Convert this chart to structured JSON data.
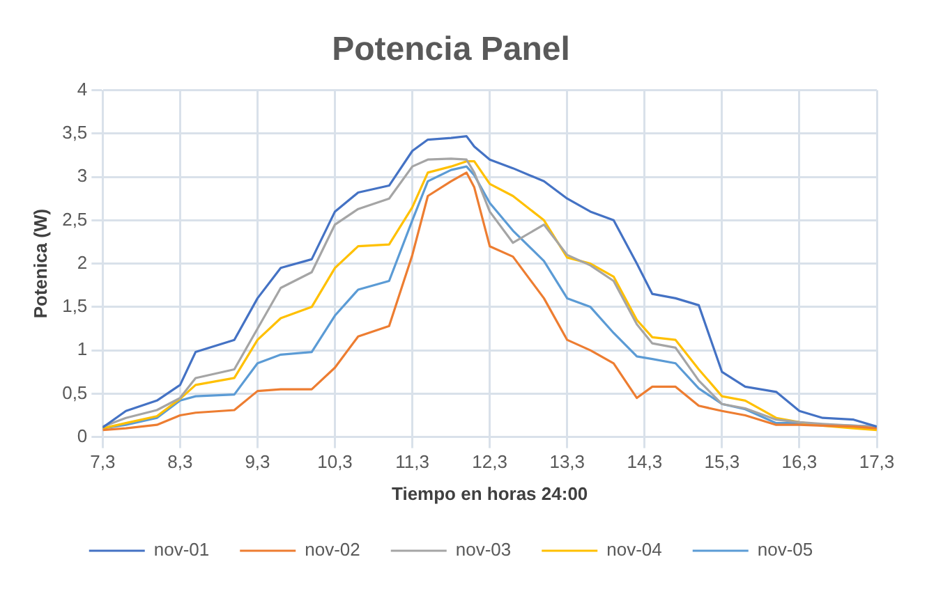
{
  "chart_data": {
    "type": "line",
    "title": "Potencia Panel",
    "xlabel": "Tiempo en horas 24:00",
    "ylabel": "Potenica (W)",
    "x": [
      7.3,
      7.6,
      8.0,
      8.3,
      8.5,
      9.0,
      9.3,
      9.6,
      10.0,
      10.3,
      10.6,
      11.0,
      11.3,
      11.5,
      11.8,
      12.0,
      12.1,
      12.3,
      12.6,
      13.0,
      13.3,
      13.6,
      13.9,
      14.2,
      14.4,
      14.7,
      15.0,
      15.3,
      15.6,
      16.0,
      16.3,
      16.6,
      17.0,
      17.3
    ],
    "series": [
      {
        "name": "nov-01",
        "color": "#4472c4",
        "values": [
          0.11,
          0.3,
          0.42,
          0.6,
          0.98,
          1.12,
          1.6,
          1.95,
          2.05,
          2.6,
          2.82,
          2.9,
          3.3,
          3.43,
          3.45,
          3.47,
          3.35,
          3.2,
          3.1,
          2.95,
          2.75,
          2.6,
          2.5,
          2.0,
          1.65,
          1.6,
          1.52,
          0.75,
          0.58,
          0.52,
          0.3,
          0.22,
          0.2,
          0.12
        ]
      },
      {
        "name": "nov-02",
        "color": "#ed7d31",
        "values": [
          0.08,
          0.1,
          0.14,
          0.25,
          0.28,
          0.31,
          0.53,
          0.55,
          0.55,
          0.8,
          1.16,
          1.28,
          2.1,
          2.78,
          2.95,
          3.05,
          2.88,
          2.2,
          2.08,
          1.6,
          1.12,
          1.0,
          0.85,
          0.45,
          0.58,
          0.58,
          0.36,
          0.3,
          0.25,
          0.14,
          0.14,
          0.13,
          0.12,
          0.1
        ]
      },
      {
        "name": "nov-03",
        "color": "#a5a5a5",
        "values": [
          0.12,
          0.22,
          0.31,
          0.45,
          0.68,
          0.78,
          1.25,
          1.72,
          1.9,
          2.45,
          2.63,
          2.75,
          3.12,
          3.2,
          3.21,
          3.2,
          3.05,
          2.6,
          2.24,
          2.45,
          2.1,
          1.98,
          1.8,
          1.3,
          1.08,
          1.03,
          0.65,
          0.38,
          0.33,
          0.2,
          0.17,
          0.15,
          0.13,
          0.12
        ]
      },
      {
        "name": "nov-04",
        "color": "#ffc000",
        "values": [
          0.1,
          0.16,
          0.24,
          0.44,
          0.6,
          0.68,
          1.12,
          1.37,
          1.5,
          1.95,
          2.2,
          2.22,
          2.65,
          3.05,
          3.12,
          3.18,
          3.18,
          2.92,
          2.78,
          2.5,
          2.07,
          2.0,
          1.85,
          1.35,
          1.15,
          1.12,
          0.78,
          0.47,
          0.42,
          0.22,
          0.17,
          0.13,
          0.1,
          0.08
        ]
      },
      {
        "name": "nov-05",
        "color": "#5b9bd5",
        "values": [
          0.1,
          0.14,
          0.22,
          0.42,
          0.47,
          0.49,
          0.85,
          0.95,
          0.98,
          1.4,
          1.7,
          1.8,
          2.5,
          2.95,
          3.08,
          3.12,
          3.02,
          2.7,
          2.38,
          2.03,
          1.6,
          1.5,
          1.2,
          0.93,
          0.9,
          0.85,
          0.56,
          0.38,
          0.32,
          0.16,
          0.16,
          0.14,
          0.13,
          0.12
        ]
      }
    ],
    "xlim": [
      7.3,
      17.3
    ],
    "xticks": [
      {
        "value": 7.3,
        "label": "7,3"
      },
      {
        "value": 8.3,
        "label": "8,3"
      },
      {
        "value": 9.3,
        "label": "9,3"
      },
      {
        "value": 10.3,
        "label": "10,3"
      },
      {
        "value": 11.3,
        "label": "11,3"
      },
      {
        "value": 12.3,
        "label": "12,3"
      },
      {
        "value": 13.3,
        "label": "13,3"
      },
      {
        "value": 14.3,
        "label": "14,3"
      },
      {
        "value": 15.3,
        "label": "15,3"
      },
      {
        "value": 16.3,
        "label": "16,3"
      },
      {
        "value": 17.3,
        "label": "17,3"
      }
    ],
    "ylim": [
      0,
      4
    ],
    "yticks": [
      0,
      {
        "value": 0.5,
        "label": "0,5"
      },
      1,
      {
        "value": 1.5,
        "label": "1,5"
      },
      2,
      {
        "value": 2.5,
        "label": "2,5"
      },
      3,
      {
        "value": 3.5,
        "label": "3,5"
      },
      4
    ],
    "grid": true,
    "legend": "bottom",
    "marker": "none",
    "line_style": "solid"
  }
}
